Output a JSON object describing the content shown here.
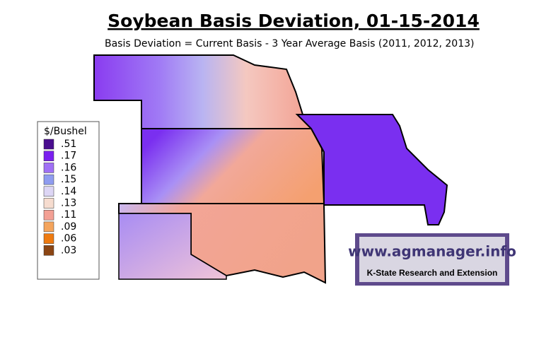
{
  "header": {
    "title": "Soybean Basis Deviation, 01-15-2014",
    "subtitle": "Basis Deviation = Current Basis - 3 Year Average Basis (2011, 2012, 2013)"
  },
  "legend": {
    "title": "$/Bushel",
    "items": [
      {
        "label": ".51",
        "color": "#4a0d8f"
      },
      {
        "label": ".17",
        "color": "#7a1fef"
      },
      {
        "label": ".16",
        "color": "#a070f5"
      },
      {
        "label": ".15",
        "color": "#8f9cf0"
      },
      {
        "label": ".14",
        "color": "#ddd6f5"
      },
      {
        "label": ".13",
        "color": "#f6dccf"
      },
      {
        "label": ".11",
        "color": "#f3a094"
      },
      {
        "label": ".09",
        "color": "#f4a45c"
      },
      {
        "label": ".06",
        "color": "#ee7a10"
      },
      {
        "label": ".03",
        "color": "#8b4513"
      }
    ]
  },
  "logo": {
    "url": "www.agmanager.info",
    "tagline": "K-State Research and Extension"
  }
}
